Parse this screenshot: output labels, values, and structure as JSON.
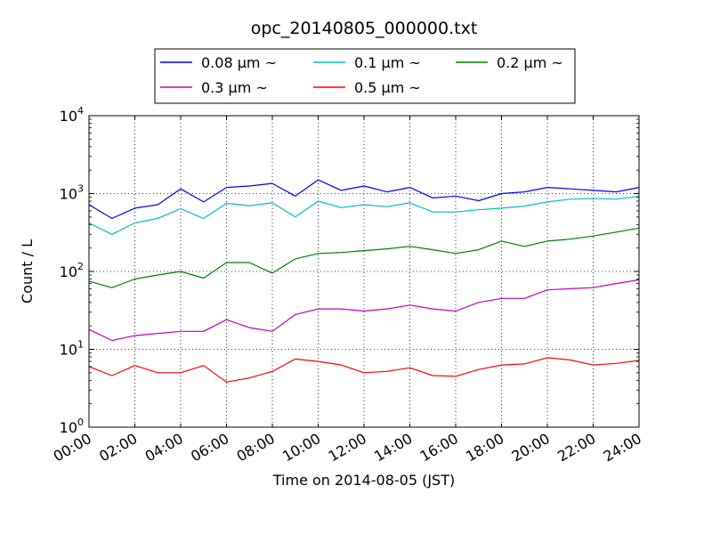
{
  "chart_data": {
    "type": "line",
    "title": "opc_20140805_000000.txt",
    "xlabel": "Time on 2014-08-05 (JST)",
    "ylabel": "Count / L",
    "y_scale": "log",
    "ylim": [
      1,
      10000
    ],
    "xlim": [
      "00:00",
      "24:00"
    ],
    "grid": true,
    "legend": {
      "placement": "top-center",
      "columns": 3
    },
    "x_ticks": [
      "00:00",
      "02:00",
      "04:00",
      "06:00",
      "08:00",
      "10:00",
      "12:00",
      "14:00",
      "16:00",
      "18:00",
      "20:00",
      "22:00",
      "24:00"
    ],
    "y_ticks": [
      {
        "base": "10",
        "exp": "0"
      },
      {
        "base": "10",
        "exp": "1"
      },
      {
        "base": "10",
        "exp": "2"
      },
      {
        "base": "10",
        "exp": "3"
      },
      {
        "base": "10",
        "exp": "4"
      }
    ],
    "x": [
      "00:00",
      "01:00",
      "02:00",
      "03:00",
      "04:00",
      "05:00",
      "06:00",
      "07:00",
      "08:00",
      "09:00",
      "10:00",
      "11:00",
      "12:00",
      "13:00",
      "14:00",
      "15:00",
      "16:00",
      "17:00",
      "18:00",
      "19:00",
      "20:00",
      "21:00",
      "22:00",
      "23:00",
      "24:00"
    ],
    "series": [
      {
        "name": "0.08 μm ~",
        "color": "#0000ff",
        "values": [
          720,
          480,
          650,
          720,
          1150,
          780,
          1200,
          1250,
          1350,
          930,
          1500,
          1100,
          1250,
          1050,
          1200,
          880,
          930,
          810,
          1000,
          1050,
          1200,
          1150,
          1100,
          1050,
          1200
        ]
      },
      {
        "name": "0.1 μm ~",
        "color": "#00bfbf",
        "values": [
          420,
          300,
          420,
          480,
          640,
          480,
          750,
          700,
          760,
          500,
          800,
          660,
          720,
          680,
          760,
          580,
          580,
          620,
          650,
          690,
          780,
          850,
          860,
          850,
          920
        ]
      },
      {
        "name": "0.2 μm ~",
        "color": "#008000",
        "values": [
          75,
          62,
          80,
          90,
          100,
          82,
          130,
          130,
          95,
          145,
          170,
          175,
          185,
          195,
          210,
          190,
          170,
          190,
          245,
          210,
          245,
          260,
          285,
          320,
          360
        ]
      },
      {
        "name": "0.3 μm ~",
        "color": "#bf00bf",
        "values": [
          18,
          13,
          15,
          16,
          17,
          17,
          24,
          19,
          17,
          28,
          33,
          33,
          31,
          33,
          37,
          33,
          31,
          40,
          45,
          45,
          58,
          60,
          62,
          70,
          78
        ]
      },
      {
        "name": "0.5 μm ~",
        "color": "#ff0000",
        "values": [
          6,
          4.6,
          6.2,
          5.0,
          5.0,
          6.2,
          3.8,
          4.3,
          5.2,
          7.5,
          7.0,
          6.3,
          5.0,
          5.2,
          5.8,
          4.6,
          4.5,
          5.5,
          6.3,
          6.5,
          7.8,
          7.3,
          6.3,
          6.6,
          7.2
        ]
      }
    ]
  }
}
